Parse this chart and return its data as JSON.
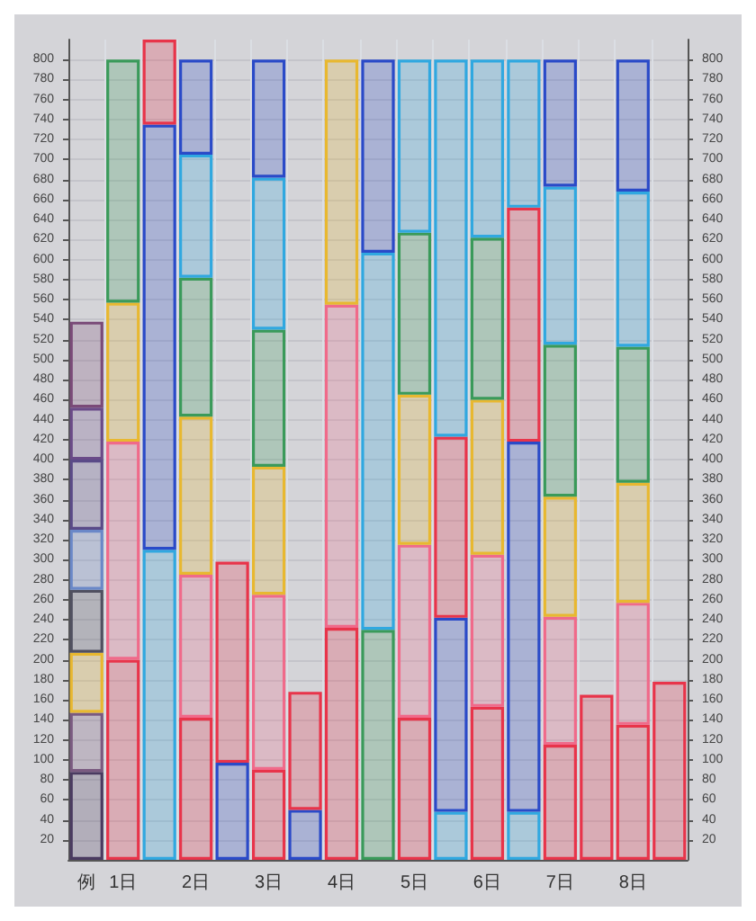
{
  "chart_data": {
    "type": "bar",
    "stacked": true,
    "grid": true,
    "categories": [
      "例",
      "1日",
      null,
      "2日",
      null,
      "3日",
      null,
      "4日",
      null,
      "5日",
      null,
      "6日",
      null,
      "7日",
      null,
      "8日",
      null
    ],
    "ylim": [
      0,
      820
    ],
    "yticks": [
      20,
      40,
      60,
      80,
      100,
      120,
      140,
      160,
      180,
      200,
      220,
      240,
      260,
      280,
      300,
      320,
      340,
      360,
      380,
      400,
      420,
      440,
      460,
      480,
      500,
      520,
      540,
      560,
      580,
      600,
      620,
      640,
      660,
      680,
      700,
      720,
      740,
      760,
      780,
      800
    ],
    "y2lim": [
      0,
      820
    ],
    "y2ticks": [
      20,
      40,
      60,
      80,
      100,
      120,
      140,
      160,
      180,
      200,
      220,
      240,
      260,
      280,
      300,
      320,
      340,
      360,
      380,
      400,
      420,
      440,
      460,
      480,
      500,
      520,
      540,
      560,
      580,
      600,
      620,
      640,
      660,
      680,
      700,
      720,
      740,
      760,
      780,
      800
    ],
    "series": [
      {
        "values": [
          88,
          200,
          310,
          142,
          97,
          90,
          50,
          232,
          230,
          142,
          48,
          153,
          48,
          115,
          165,
          135,
          178
        ],
        "colors": [
          "#4a3a60",
          "#e8344a",
          "#30a8e0",
          "#e8344a",
          "#2a4ac8",
          "#e8344a",
          "#2a4ac8",
          "#e8344a",
          "#3a9a5a",
          "#e8344a",
          "#30a8e0",
          "#e8344a",
          "#30a8e0",
          "#e8344a",
          "#e8344a",
          "#e8344a",
          "#e8344a"
        ]
      },
      {
        "values": [
          59,
          218,
          425,
          143,
          201,
          175,
          118,
          323,
          377,
          173,
          194,
          152,
          370,
          128,
          null,
          122,
          null
        ],
        "colors": [
          "#7a5a80",
          "#f06a8a",
          "#2a4ac8",
          "#f06a8a",
          "#e8344a",
          "#f06a8a",
          "#e8344a",
          "#f06a8a",
          "#30a8e0",
          "#f06a8a",
          "#2a4ac8",
          "#f06a8a",
          "#2a4ac8",
          "#f06a8a",
          null,
          "#f06a8a",
          null
        ]
      },
      {
        "values": [
          60,
          139,
          85,
          158,
          null,
          128,
          null,
          245,
          193,
          150,
          181,
          155,
          234,
          120,
          null,
          120,
          null
        ],
        "colors": [
          "#e8b830",
          "#e8b830",
          "#e8344a",
          "#e8b830",
          null,
          "#e8b830",
          null,
          "#e8b830",
          "#2a4ac8",
          "#e8b830",
          "#e8344a",
          "#e8b830",
          "#e8344a",
          "#e8b830",
          null,
          "#e8b830",
          null
        ]
      },
      {
        "values": [
          63,
          243,
          null,
          139,
          null,
          137,
          null,
          null,
          null,
          162,
          377,
          162,
          148,
          152,
          null,
          136,
          null
        ],
        "colors": [
          "#505060",
          "#3a9a5a",
          null,
          "#3a9a5a",
          null,
          "#3a9a5a",
          null,
          null,
          null,
          "#3a9a5a",
          "#30a8e0",
          "#3a9a5a",
          "#30a8e0",
          "#3a9a5a",
          null,
          "#3a9a5a",
          null
        ]
      },
      {
        "values": [
          60,
          null,
          null,
          123,
          null,
          152,
          null,
          null,
          null,
          173,
          null,
          178,
          null,
          158,
          null,
          155,
          null
        ],
        "colors": [
          "#6a88c8",
          null,
          null,
          "#30a8e0",
          null,
          "#30a8e0",
          null,
          null,
          null,
          "#30a8e0",
          null,
          "#30a8e0",
          null,
          "#30a8e0",
          null,
          "#30a8e0",
          null
        ]
      },
      {
        "values": [
          70,
          null,
          null,
          95,
          null,
          118,
          null,
          null,
          null,
          null,
          null,
          null,
          null,
          127,
          null,
          132,
          null
        ],
        "colors": [
          "#5a4a88",
          null,
          null,
          "#2a4ac8",
          null,
          "#2a4ac8",
          null,
          null,
          null,
          null,
          null,
          null,
          null,
          "#2a4ac8",
          null,
          "#2a4ac8",
          null
        ]
      },
      {
        "values": [
          52,
          null,
          null,
          null,
          null,
          null,
          null,
          null,
          null,
          null,
          null,
          null,
          null,
          null,
          null,
          null,
          null
        ],
        "colors": [
          "#6a4a88",
          null,
          null,
          null,
          null,
          null,
          null,
          null,
          null,
          null,
          null,
          null,
          null,
          null,
          null,
          null,
          null
        ]
      },
      {
        "values": [
          86,
          null,
          null,
          null,
          null,
          null,
          null,
          null,
          null,
          null,
          null,
          null,
          null,
          null,
          null,
          null,
          null
        ],
        "colors": [
          "#7a4a78",
          null,
          null,
          null,
          null,
          null,
          null,
          null,
          null,
          null,
          null,
          null,
          null,
          null,
          null,
          null,
          null
        ]
      }
    ]
  }
}
